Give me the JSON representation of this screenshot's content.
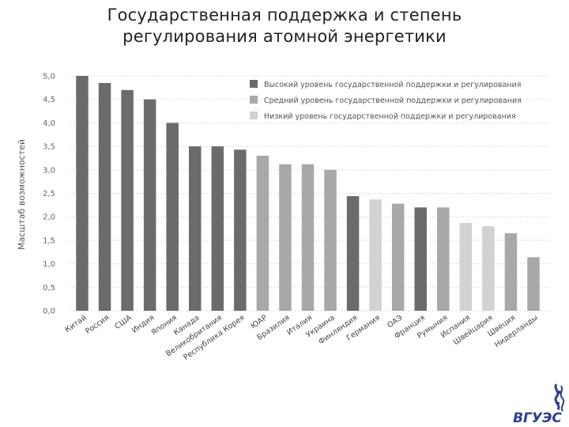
{
  "page": {
    "title_line1": "Государственная поддержка и степень",
    "title_line2": "регулирования атомной энергетики"
  },
  "logo": {
    "text": "ВГУЭС"
  },
  "chart_data": {
    "type": "bar",
    "ylabel": "Масштаб возможностей",
    "xlabel": "",
    "ylim": [
      0,
      5
    ],
    "yticks": [
      "0,0",
      "0,5",
      "1,0",
      "1,5",
      "2,0",
      "2,5",
      "3,0",
      "3,5",
      "4,0",
      "4,5",
      "5,0"
    ],
    "grid": true,
    "legend_position": "top-right",
    "legend": [
      {
        "key": "high",
        "label": "Высокий уровень государственной поддержки и регулирования",
        "color": "#6b6b6b"
      },
      {
        "key": "medium",
        "label": "Средний уровень государственной поддержки и регулирования",
        "color": "#a8a8a8"
      },
      {
        "key": "low",
        "label": "Низкий уровень государственной поддержки и регулирования",
        "color": "#d2d2d2"
      }
    ],
    "categories": [
      "Китай",
      "Россия",
      "США",
      "Индия",
      "Япония",
      "Канада",
      "Великобритания",
      "Республика Корея",
      "ЮАР",
      "Бразилия",
      "Италия",
      "Украина",
      "Финляндия",
      "Германия",
      "ОАЭ",
      "Франция",
      "Румыния",
      "Испания",
      "Швейцария",
      "Швеция",
      "Нидерланды"
    ],
    "values": [
      5.0,
      4.85,
      4.7,
      4.5,
      4.0,
      3.5,
      3.5,
      3.43,
      3.3,
      3.12,
      3.12,
      3.0,
      2.44,
      2.37,
      2.28,
      2.2,
      2.2,
      1.87,
      1.8,
      1.65,
      1.14
    ],
    "levels": [
      "high",
      "high",
      "high",
      "high",
      "high",
      "high",
      "high",
      "high",
      "medium",
      "medium",
      "medium",
      "medium",
      "high",
      "low",
      "medium",
      "high",
      "medium",
      "low",
      "low",
      "medium",
      "medium"
    ]
  }
}
